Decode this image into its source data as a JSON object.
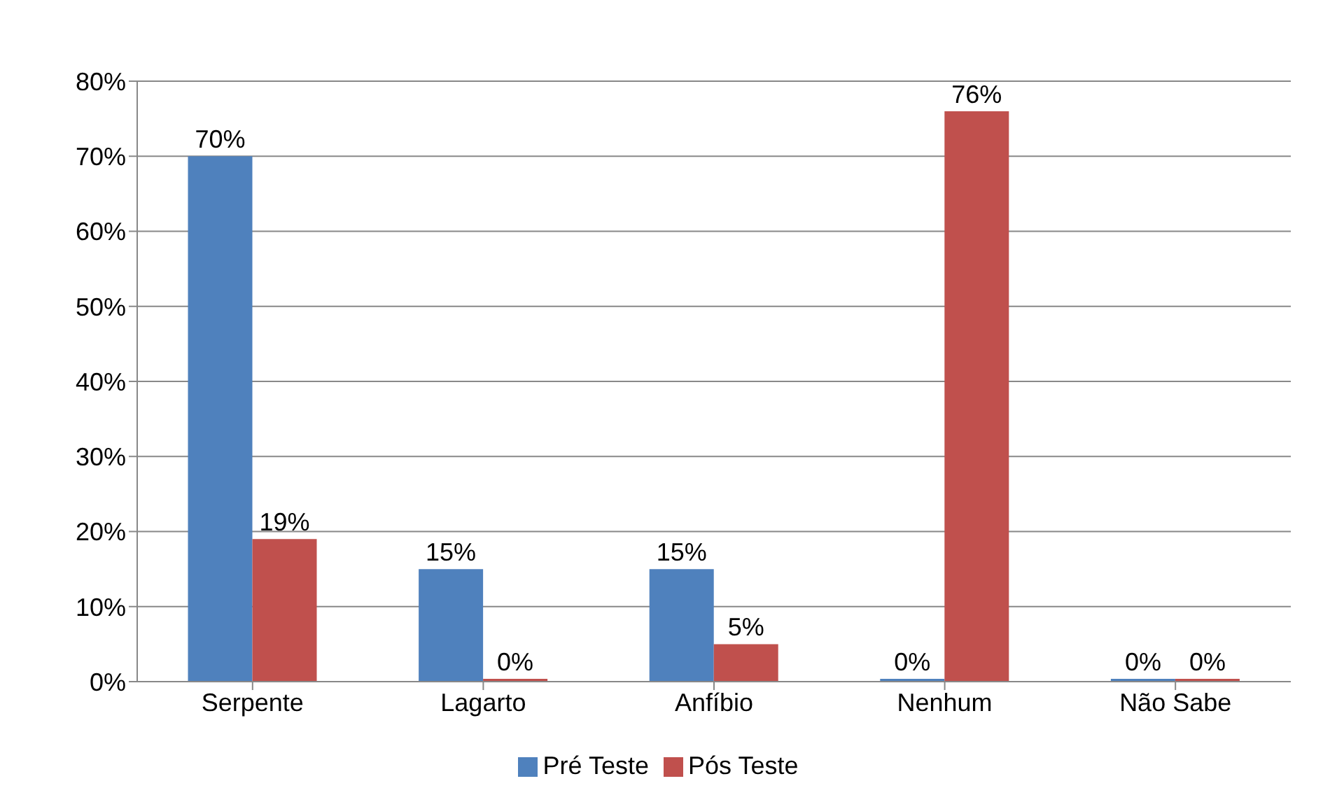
{
  "chart_data": {
    "type": "bar",
    "categories": [
      "Serpente",
      "Lagarto",
      "Anfíbio",
      "Nenhum",
      "Não Sabe"
    ],
    "series": [
      {
        "name": "Pré Teste",
        "color": "#4f81bd",
        "values": [
          70,
          15,
          15,
          0,
          0
        ],
        "value_labels": [
          "70%",
          "15%",
          "15%",
          "0%",
          "0%"
        ]
      },
      {
        "name": "Pós Teste",
        "color": "#c0504d",
        "values": [
          19,
          0,
          5,
          76,
          0
        ],
        "value_labels": [
          "19%",
          "0%",
          "5%",
          "76%",
          "0%"
        ]
      }
    ],
    "ylim": [
      0,
      80
    ],
    "yticks": [
      {
        "value": 0,
        "label": "0%"
      },
      {
        "value": 10,
        "label": "10%"
      },
      {
        "value": 20,
        "label": "20%"
      },
      {
        "value": 30,
        "label": "30%"
      },
      {
        "value": 40,
        "label": "40%"
      },
      {
        "value": 50,
        "label": "50%"
      },
      {
        "value": 60,
        "label": "60%"
      },
      {
        "value": 70,
        "label": "70%"
      },
      {
        "value": 80,
        "label": "80%"
      }
    ],
    "grid": "y",
    "legend": "bottom"
  }
}
